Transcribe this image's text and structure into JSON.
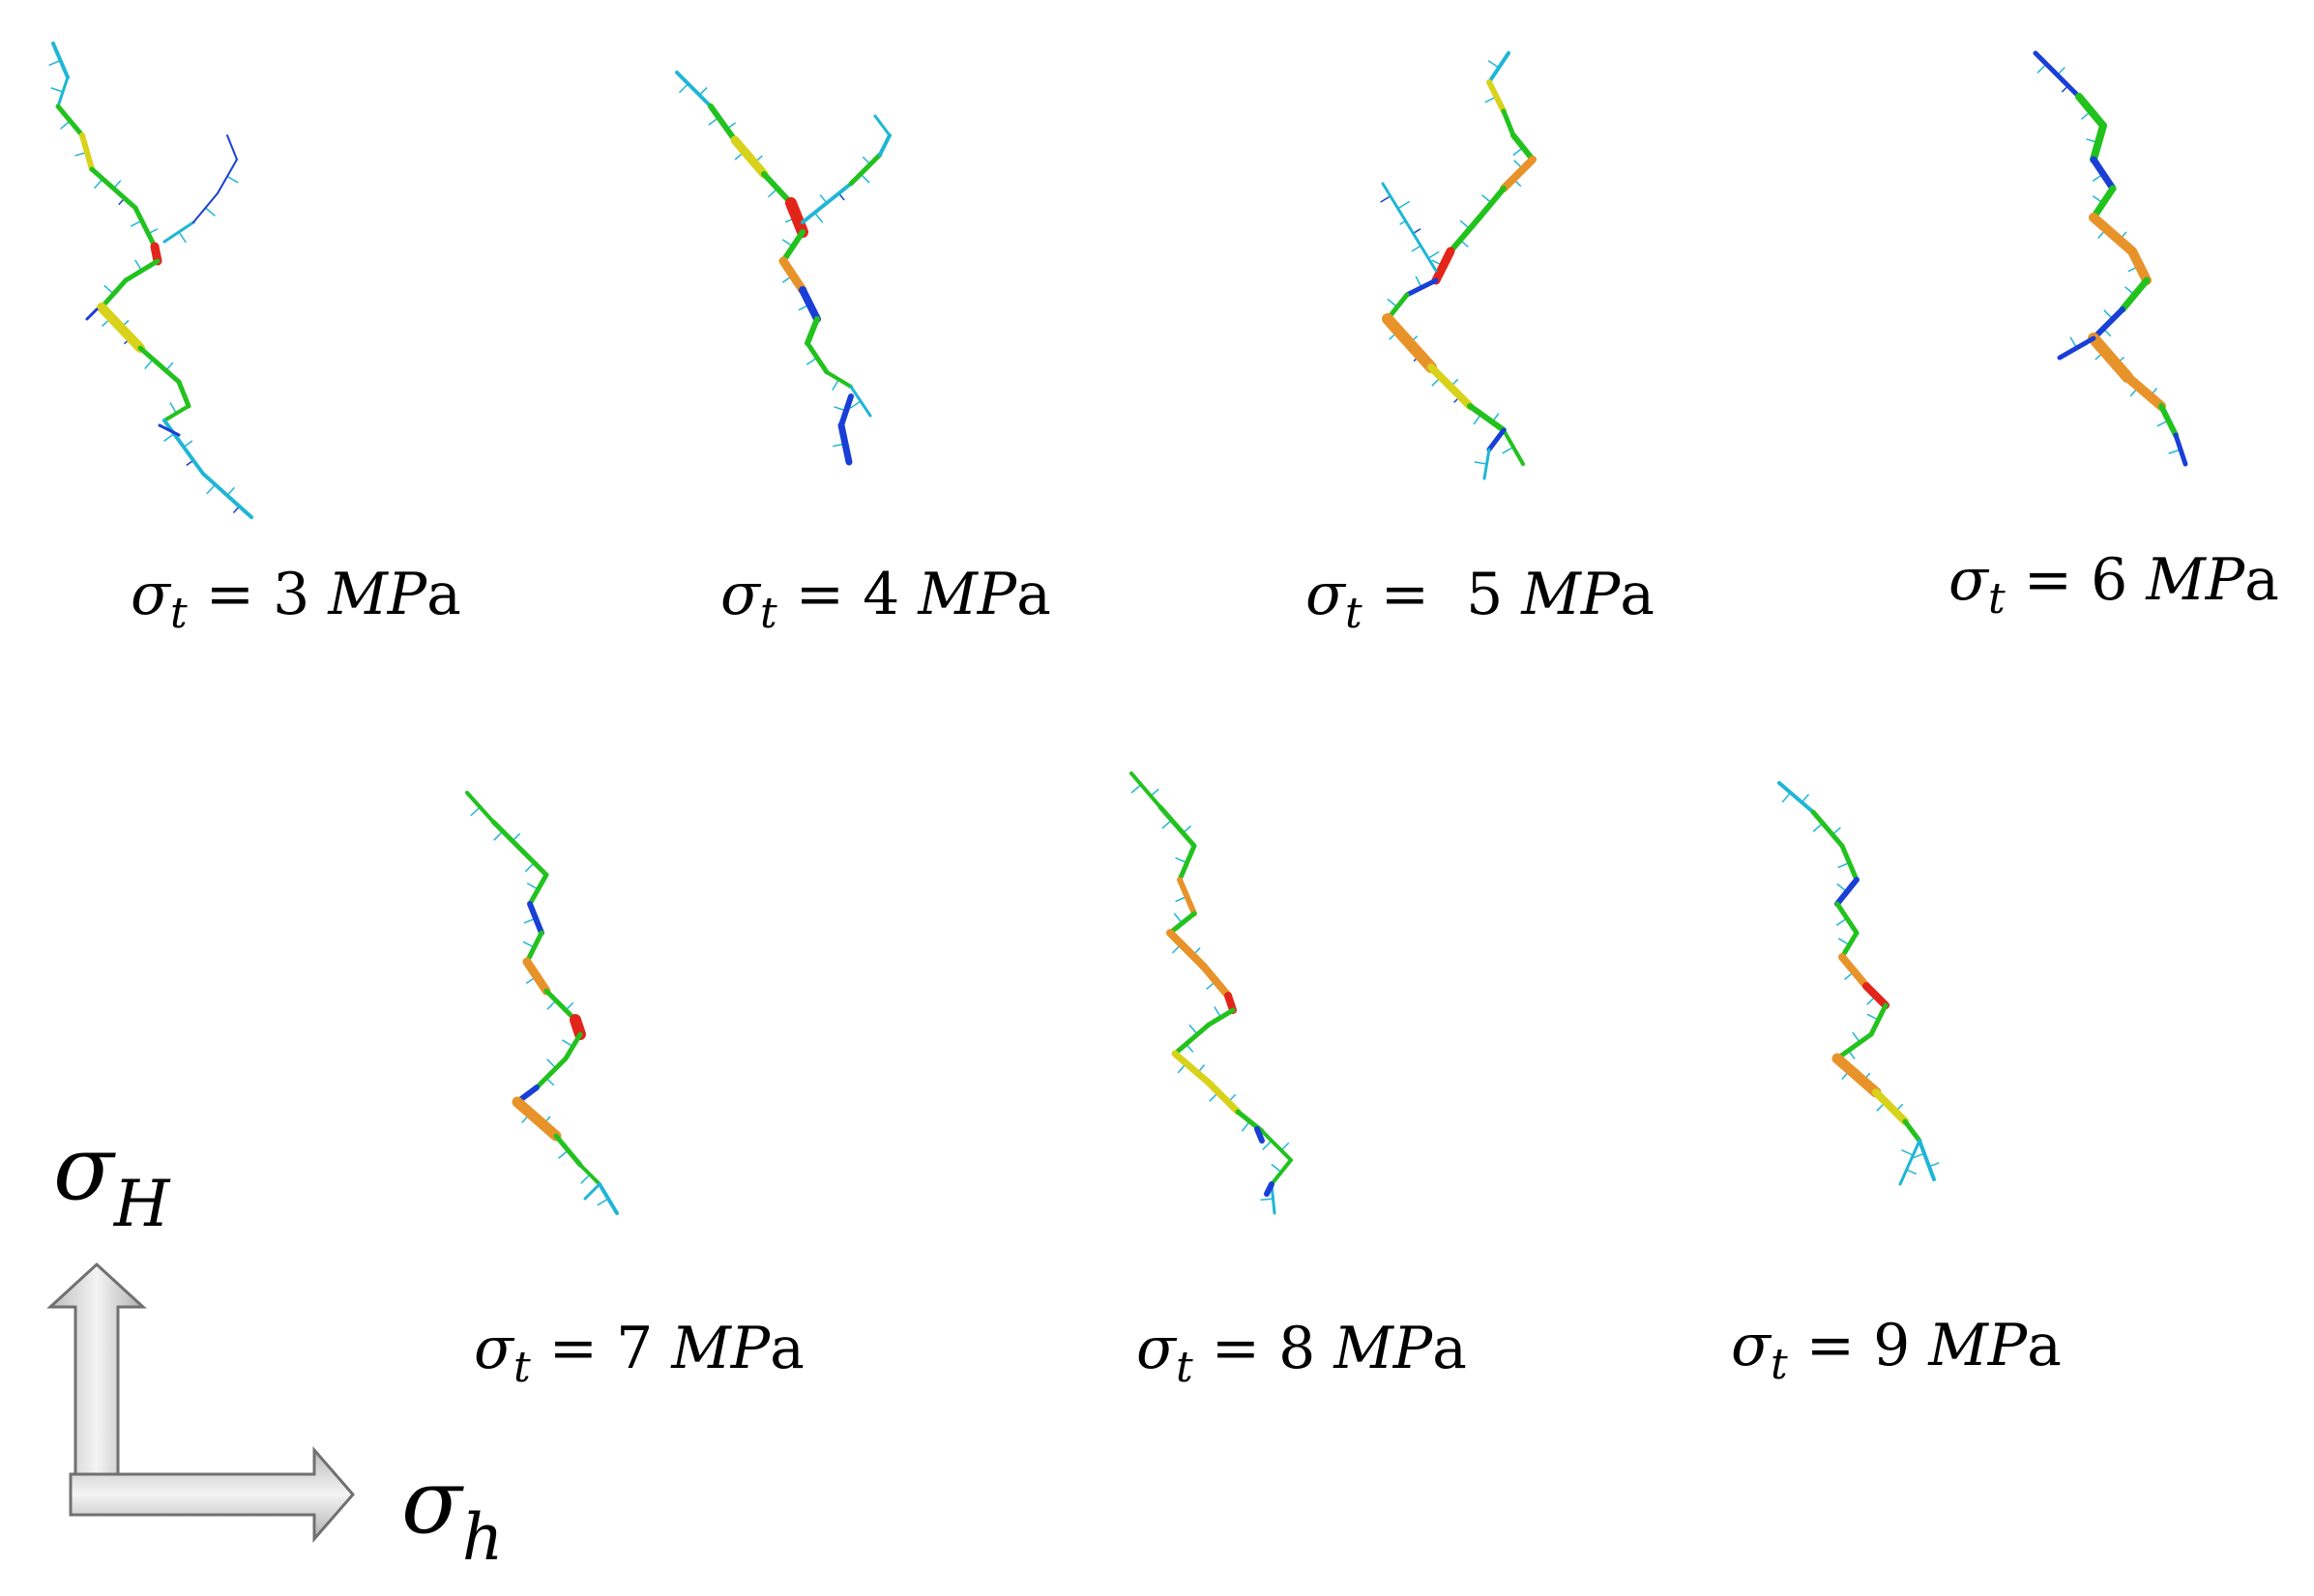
{
  "panels": [
    {
      "id": "t3",
      "sigma": "σ",
      "sub": "t",
      "eq": " = 3 ",
      "unit_it": "MP",
      "unit_rm": "a"
    },
    {
      "id": "t4",
      "sigma": "σ",
      "sub": "t",
      "eq": " = 4 ",
      "unit_it": "MP",
      "unit_rm": "a"
    },
    {
      "id": "t5",
      "sigma": "σ",
      "sub": "t",
      "eq": " =  5 ",
      "unit_it": "MP",
      "unit_rm": "a"
    },
    {
      "id": "t6",
      "sigma": "σ",
      "sub": "t",
      "eq": " = 6 ",
      "unit_it": "MP",
      "unit_rm": "a"
    },
    {
      "id": "t7",
      "sigma": "σ",
      "sub": "t",
      "eq": " = 7 ",
      "unit_it": "MP",
      "unit_rm": "a"
    },
    {
      "id": "t8",
      "sigma": "σ",
      "sub": "t",
      "eq": " = 8 ",
      "unit_it": "MP",
      "unit_rm": "a"
    },
    {
      "id": "t9",
      "sigma": "σ",
      "sub": "t",
      "eq": " = 9 ",
      "unit_it": "MP",
      "unit_rm": "a"
    }
  ],
  "axes": {
    "vertical": {
      "symbol": "σ",
      "sub": "H"
    },
    "horizontal": {
      "symbol": "σ",
      "sub": "h"
    }
  },
  "colors": {
    "green": "#22c21e",
    "cyan": "#1fb6d6",
    "yellow": "#d8d21a",
    "orange": "#e8932a",
    "red": "#e3241b",
    "blue": "#1a3fd6",
    "arrow_fill": "#d9d9d9",
    "arrow_stroke": "#707070"
  }
}
